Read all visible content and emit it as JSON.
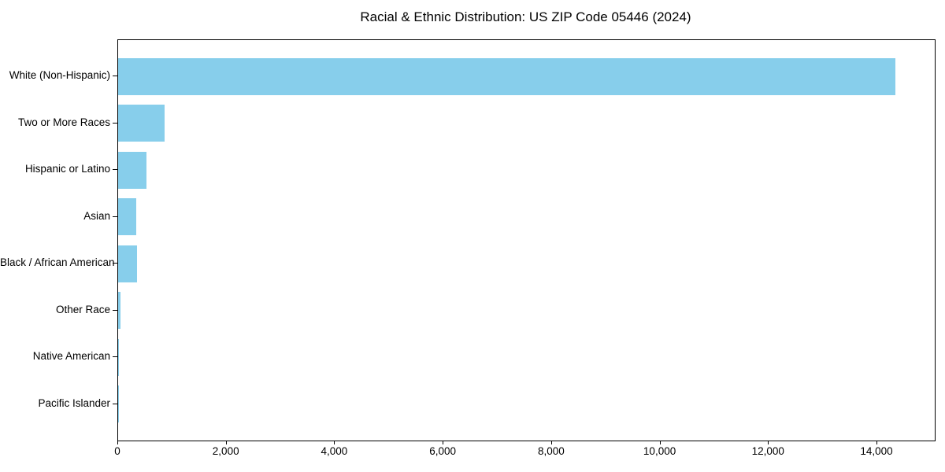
{
  "chart_data": {
    "type": "bar",
    "orientation": "horizontal",
    "title": "Racial & Ethnic Distribution: US ZIP Code 05446 (2024)",
    "categories": [
      "White (Non-Hispanic)",
      "Two or More Races",
      "Hispanic or Latino",
      "Asian",
      "Black / African American",
      "Other Race",
      "Native American",
      "Pacific Islander"
    ],
    "values": [
      14340,
      860,
      520,
      335,
      350,
      50,
      10,
      4
    ],
    "xlabel": "",
    "ylabel": "",
    "xlim": [
      0,
      15060
    ],
    "xticks": [
      0,
      2000,
      4000,
      6000,
      8000,
      10000,
      12000,
      14000
    ],
    "xtick_labels": [
      "0",
      "2,000",
      "4,000",
      "6,000",
      "8,000",
      "10,000",
      "12,000",
      "14,000"
    ],
    "bar_color": "#87CEEB",
    "axis_color": "#000000",
    "text_color": "#000000",
    "grid": false,
    "legend": null
  }
}
